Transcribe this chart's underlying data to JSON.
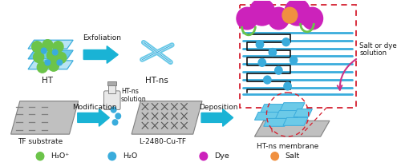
{
  "bg_color": "#ffffff",
  "arrow_color": "#1ab3d5",
  "label_color": "#1a1a1a",
  "dashed_box_color": "#d42030",
  "pink_arrow_color": "#cc3388",
  "green_ball": "#6cc44a",
  "blue_ball": "#3aacdc",
  "purple_ball": "#cc22bb",
  "orange_ball": "#f09040",
  "sheet_light": "#b8e4f5",
  "sheet_mid": "#6ccae8",
  "sheet_edge": "#3aacdc",
  "gray_substrate": "#c0c0c0",
  "gray_edge": "#808080",
  "scissors_color": "#6ccae8",
  "legend_items": [
    {
      "label": "H₃O⁺",
      "color": "#6cc44a",
      "size": 0.013
    },
    {
      "label": "H₂O",
      "color": "#3aacdc",
      "size": 0.009
    },
    {
      "label": "Dye",
      "color": "#cc22bb",
      "size": 0.014
    },
    {
      "label": "Salt",
      "color": "#f09040",
      "size": 0.011
    }
  ],
  "figsize": [
    5.0,
    2.08
  ],
  "dpi": 100
}
